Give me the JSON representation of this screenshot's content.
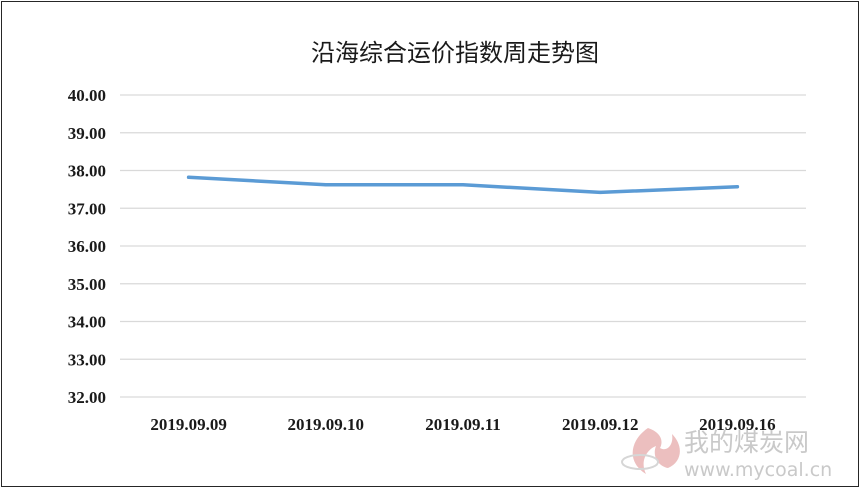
{
  "chart_data": {
    "type": "line",
    "title": "沿海综合运价指数周走势图",
    "categories": [
      "2019.09.09",
      "2019.09.10",
      "2019.09.11",
      "2019.09.12",
      "2019.09.16"
    ],
    "series": [
      {
        "values": [
          37.82,
          37.62,
          37.62,
          37.42,
          37.57
        ],
        "color": "#5b9bd5"
      }
    ],
    "ylim": [
      32.0,
      40.0
    ],
    "yticks": [
      "32.00",
      "33.00",
      "34.00",
      "35.00",
      "36.00",
      "37.00",
      "38.00",
      "39.00",
      "40.00"
    ],
    "grid": true,
    "legend": "none"
  },
  "watermark": {
    "cn": "我的煤炭网",
    "en": "www.mycoal.cn",
    "icon": "flame-logo-icon"
  }
}
